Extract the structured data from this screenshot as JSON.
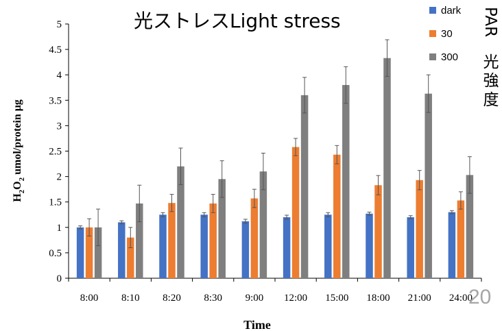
{
  "chart_data": {
    "type": "bar",
    "title": "光ストレスLight stress",
    "xlabel": "Time",
    "ylabel_main": "H",
    "ylabel_sub1": "2",
    "ylabel_mid": "O",
    "ylabel_sub2": "2",
    "ylabel_rest": " umol/protein  μg",
    "ylim": [
      0,
      5
    ],
    "yticks": [
      "0",
      "0.5",
      "1",
      "1.5",
      "2",
      "2.5",
      "3",
      "3.5",
      "4",
      "4.5",
      "5"
    ],
    "categories": [
      "8:00",
      "8:10",
      "8:20",
      "8:30",
      "9:00",
      "12:00",
      "15:00",
      "18:00",
      "21:00",
      "24:00"
    ],
    "legend_position": "top-right",
    "series": [
      {
        "name": "dark",
        "color": "#4472c4",
        "values": [
          1.0,
          1.1,
          1.25,
          1.25,
          1.12,
          1.2,
          1.25,
          1.27,
          1.2,
          1.3
        ],
        "errors": [
          0.03,
          0.03,
          0.04,
          0.04,
          0.04,
          0.04,
          0.04,
          0.03,
          0.03,
          0.03
        ]
      },
      {
        "name": "30",
        "color": "#ed7d31",
        "values": [
          1.0,
          0.8,
          1.48,
          1.47,
          1.57,
          2.58,
          2.43,
          1.83,
          1.93,
          1.53
        ],
        "errors": [
          0.17,
          0.2,
          0.17,
          0.18,
          0.18,
          0.17,
          0.18,
          0.19,
          0.19,
          0.17
        ]
      },
      {
        "name": "300",
        "color": "#7f7f7f",
        "values": [
          1.0,
          1.47,
          2.2,
          1.95,
          2.1,
          3.6,
          3.8,
          4.33,
          3.63,
          2.03
        ],
        "errors": [
          0.36,
          0.36,
          0.36,
          0.36,
          0.36,
          0.35,
          0.36,
          0.36,
          0.37,
          0.36
        ]
      }
    ]
  },
  "side_label": {
    "par": "PAR",
    "chars": [
      "光",
      "強",
      "度"
    ]
  },
  "slide_number": "20"
}
